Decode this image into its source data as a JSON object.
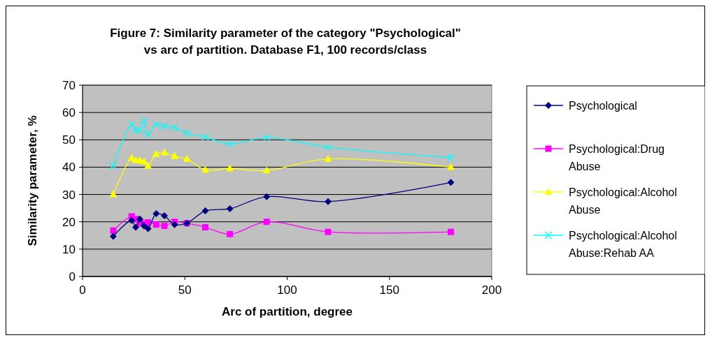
{
  "chart_data": {
    "type": "line",
    "title": "Figure 7: Similarity parameter of the category \"Psychological\" vs arc of partition. Database F1, 100 records/class",
    "xlabel": "Arc of partition, degree",
    "ylabel": "Similarity parameter, %",
    "x": [
      15,
      24,
      26,
      28,
      30,
      32,
      36,
      40,
      45,
      51,
      60,
      72,
      90,
      120,
      180
    ],
    "xlim": [
      0,
      200
    ],
    "xticks": [
      0,
      50,
      100,
      150,
      200
    ],
    "ylim": [
      0,
      70
    ],
    "yticks": [
      0,
      10,
      20,
      30,
      40,
      50,
      60,
      70
    ],
    "grid": "y",
    "legend": "right",
    "series": [
      {
        "name": "Psychological",
        "color": "#000080",
        "marker": "diamond",
        "values": [
          14.7,
          20.5,
          18,
          21,
          18.5,
          17.5,
          23,
          22.2,
          19,
          19.5,
          24,
          24.8,
          29.2,
          27.4,
          34.4
        ]
      },
      {
        "name": "Psychological:Drug Abuse",
        "color": "#ff00ff",
        "marker": "square",
        "values": [
          16.8,
          22,
          21,
          19.5,
          19.5,
          19.8,
          19,
          18.5,
          20,
          19.5,
          18,
          15.5,
          20,
          16.3,
          16.3
        ]
      },
      {
        "name": "Psychological:Alcohol Abuse",
        "color": "#ffff00",
        "marker": "triangle",
        "values": [
          30,
          43.3,
          42.5,
          42.5,
          42,
          40.4,
          44.8,
          45.3,
          44,
          43,
          39,
          39.5,
          38.8,
          43,
          40
        ]
      },
      {
        "name": "Psychological:Alcohol Abuse:Rehab AA",
        "color": "#00ffff",
        "marker": "cross",
        "values": [
          40.5,
          55.5,
          53.5,
          53.5,
          57,
          52,
          55.5,
          55,
          54.5,
          52.5,
          51,
          48.5,
          50.8,
          47.3,
          43.5
        ]
      }
    ]
  }
}
